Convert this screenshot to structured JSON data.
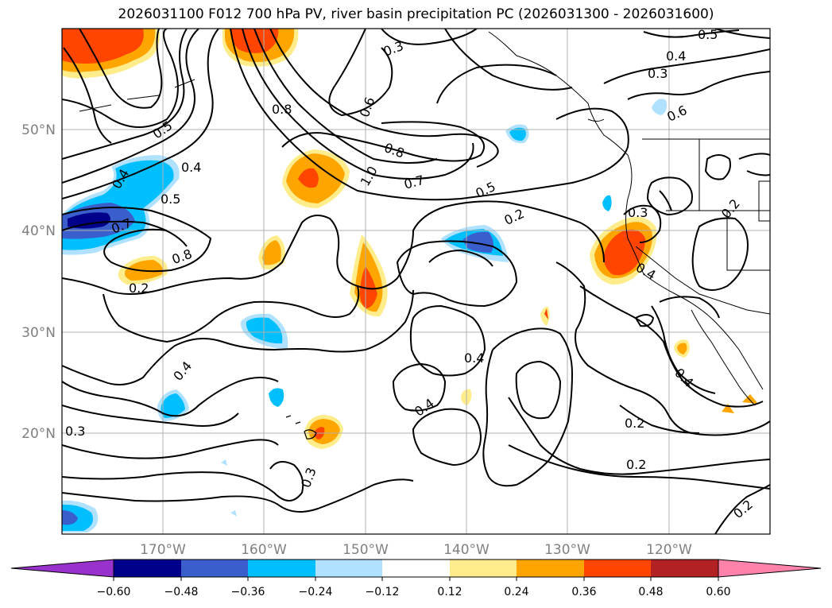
{
  "title": "2026031100 F012 700 hPa PV, river basin precipitation PC (2026031300 - 2026031600)",
  "lat_labels": [
    "50°N",
    "40°N",
    "30°N",
    "20°N"
  ],
  "lon_labels": [
    "170°W",
    "160°W",
    "150°W",
    "140°W",
    "130°W",
    "120°W"
  ],
  "contour_labels": [
    "0.3",
    "0.5",
    "0.4",
    "0.3",
    "0.8",
    "0.6",
    "0.5",
    "0.4",
    "0.5",
    "0.7",
    "0.8",
    "0.6",
    "0.8",
    "1.0",
    "0.7",
    "0.5",
    "0.2",
    "0.3",
    "0.4",
    "0.2",
    "0.4",
    "0.4",
    "0.4",
    "0.4",
    "0.2",
    "0.2",
    "0.3",
    "0.3",
    "0.2",
    "0.4",
    "0.2"
  ],
  "colorbar": {
    "colors": [
      "#9932CC",
      "#00008B",
      "#3A5FCD",
      "#00BFFF",
      "#B0E2FF",
      "#FFFFFF",
      "#FFEC8B",
      "#FFA500",
      "#FF4500",
      "#B22222",
      "#FF82AB"
    ],
    "ticks": [
      "−0.60",
      "−0.48",
      "−0.36",
      "−0.24",
      "−0.12",
      "0.12",
      "0.24",
      "0.36",
      "0.48",
      "0.60"
    ]
  }
}
